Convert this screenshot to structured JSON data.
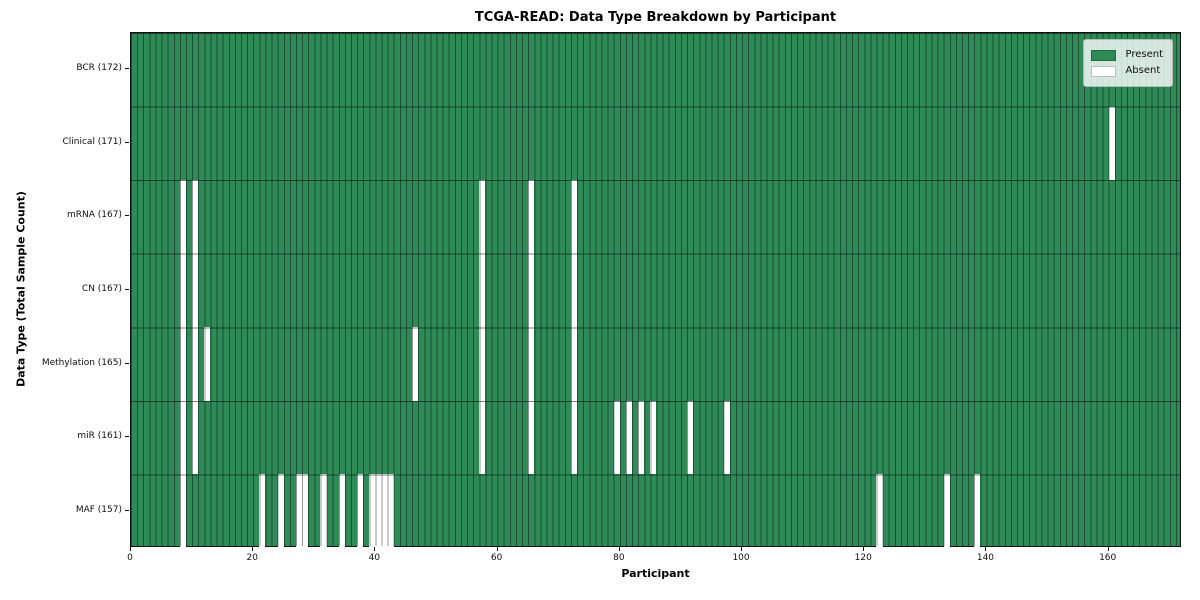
{
  "title": "TCGA-READ: Data Type Breakdown by Participant",
  "legend": {
    "items": [
      {
        "label": "Present",
        "color": "#2e8b57"
      },
      {
        "label": "Absent",
        "color": "#ffffff"
      }
    ]
  },
  "chart_data": {
    "type": "heatmap",
    "title": "TCGA-READ: Data Type Breakdown by Participant",
    "xlabel": "Participant",
    "ylabel": "Data Type (Total Sample Count)",
    "x_range": [
      0,
      172
    ],
    "x_ticks": [
      0,
      20,
      40,
      60,
      80,
      100,
      120,
      140,
      160
    ],
    "total_participants": 172,
    "present_color": "#2e8b57",
    "absent_color": "#ffffff",
    "grid": true,
    "legend_position": "upper right",
    "rows": [
      {
        "label": "BCR (172)",
        "data_type": "BCR",
        "sample_count": 172,
        "absent_participants": []
      },
      {
        "label": "Clinical (171)",
        "data_type": "Clinical",
        "sample_count": 171,
        "absent_participants": [
          160
        ]
      },
      {
        "label": "mRNA (167)",
        "data_type": "mRNA",
        "sample_count": 167,
        "absent_participants": [
          8,
          10,
          57,
          65,
          72
        ]
      },
      {
        "label": "CN (167)",
        "data_type": "CN",
        "sample_count": 167,
        "absent_participants": [
          8,
          10,
          57,
          65,
          72
        ]
      },
      {
        "label": "Methylation (165)",
        "data_type": "Methylation",
        "sample_count": 165,
        "absent_participants": [
          8,
          10,
          12,
          46,
          57,
          65,
          72
        ]
      },
      {
        "label": "miR (161)",
        "data_type": "miR",
        "sample_count": 161,
        "absent_participants": [
          8,
          10,
          57,
          65,
          72,
          79,
          81,
          83,
          85,
          91,
          97
        ]
      },
      {
        "label": "MAF (157)",
        "data_type": "MAF",
        "sample_count": 157,
        "absent_participants": [
          8,
          21,
          24,
          27,
          28,
          31,
          34,
          37,
          39,
          40,
          41,
          42,
          122,
          133,
          138
        ]
      }
    ]
  }
}
